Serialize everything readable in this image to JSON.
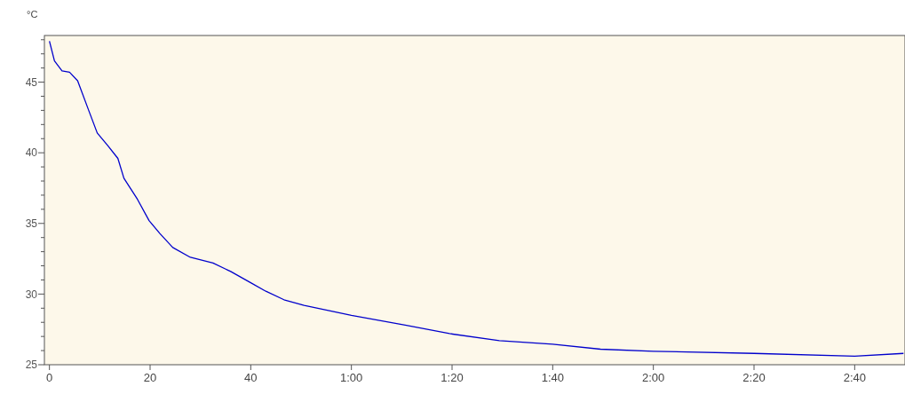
{
  "chart_data": {
    "type": "line",
    "ylabel": "°C",
    "grid": false,
    "marker": "none",
    "line_style": "solid",
    "xlim": [
      -1,
      170
    ],
    "ylim": [
      25,
      48.3
    ],
    "xticks": [
      0,
      20,
      40,
      {
        "value": 60,
        "label": "1:00"
      },
      {
        "value": 80,
        "label": "1:20"
      },
      {
        "value": 100,
        "label": "1:40"
      },
      {
        "value": 120,
        "label": "2:00"
      },
      {
        "value": 140,
        "label": "2:20"
      },
      {
        "value": 160,
        "label": "2:40"
      }
    ],
    "yticks": [
      25,
      {
        "value": 26,
        "label": null
      },
      {
        "value": 27,
        "label": null
      },
      {
        "value": 28,
        "label": null
      },
      {
        "value": 29,
        "label": null
      },
      30,
      {
        "value": 31,
        "label": null
      },
      {
        "value": 32,
        "label": null
      },
      {
        "value": 33,
        "label": null
      },
      {
        "value": 34,
        "label": null
      },
      35,
      {
        "value": 36,
        "label": null
      },
      {
        "value": 37,
        "label": null
      },
      {
        "value": 38,
        "label": null
      },
      {
        "value": 39,
        "label": null
      },
      40,
      {
        "value": 41,
        "label": null
      },
      {
        "value": 42,
        "label": null
      },
      {
        "value": 43,
        "label": null
      },
      {
        "value": 44,
        "label": null
      },
      45,
      {
        "value": 46,
        "label": null
      },
      {
        "value": 47,
        "label": null
      },
      {
        "value": 48,
        "label": null
      }
    ],
    "series": [
      {
        "color": "#0000cc",
        "x": [
          0,
          1,
          2.5,
          4,
          5.6,
          7.8,
          9.5,
          11.6,
          13.6,
          14.8,
          17.5,
          19.8,
          21.9,
          24.5,
          28,
          32.5,
          36,
          40,
          43,
          46.6,
          50.6,
          60,
          70.7,
          79.5,
          89.4,
          100,
          109.5,
          120,
          140,
          160,
          169.7
        ],
        "values": [
          47.9,
          46.5,
          45.8,
          45.7,
          45.1,
          43.0,
          41.4,
          40.5,
          39.6,
          38.2,
          36.7,
          35.2,
          34.3,
          33.3,
          32.6,
          32.2,
          31.6,
          30.8,
          30.2,
          29.6,
          29.2,
          28.5,
          27.8,
          27.2,
          26.7,
          26.45,
          26.1,
          25.95,
          25.8,
          25.6,
          25.8
        ]
      }
    ]
  }
}
